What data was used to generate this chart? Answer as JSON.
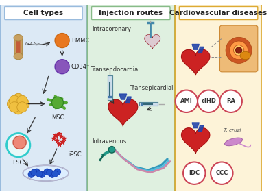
{
  "panel1_title": "Cell types",
  "panel2_title": "Injection routes",
  "panel3_title": "Cardiovascular diseases",
  "panel1_bg": "#dce9f5",
  "panel2_bg": "#dff0e0",
  "panel3_bg": "#fdf3d8",
  "panel1_border": "#99bbdd",
  "panel2_border": "#88bb88",
  "panel3_border": "#ddaa33",
  "cell_labels": [
    "BMMC",
    "CD34⁺",
    "MSC",
    "ESC",
    "iPSC"
  ],
  "cell_label_gcsf": "G-CSF",
  "injection_labels": [
    "Intracoronary",
    "Transendocardial",
    "Transepicardial",
    "Intravenous"
  ],
  "disease_labels_top": [
    "AMI",
    "cIHD",
    "RA"
  ],
  "disease_labels_bottom": [
    "IDC",
    "CCC"
  ],
  "tcruzi_label": "T. cruzi",
  "circle_edgecolor": "#cc4455",
  "circle_linewidth": 1.5,
  "panel_title_fontsize": 7.5,
  "label_fontsize": 6.0,
  "small_fontsize": 5.2,
  "bone_color": "#c8a060",
  "bone_marrow_color": "#c03020",
  "bmmc_color": "#e87820",
  "cd34_color": "#8855bb",
  "msc_color": "#55aa33",
  "adipose_color": "#f0c040",
  "esc_outer_color": "#30cccc",
  "esc_inner_color": "#ee8877",
  "ipsc_color": "#cc2222",
  "petri_color": "#2255cc",
  "arrow_color": "#333333",
  "heart_red": "#cc2222",
  "heart_blue": "#2244aa",
  "heart_light": "#ddaaaa",
  "syringe_body": "#aaccdd",
  "syringe_blue": "#2266aa",
  "iv_teal": "#229988",
  "artery_outer": "#cc8844",
  "artery_yellow": "#ddcc44",
  "artery_dark": "#883311",
  "tcruzi_color": "#cc88cc"
}
